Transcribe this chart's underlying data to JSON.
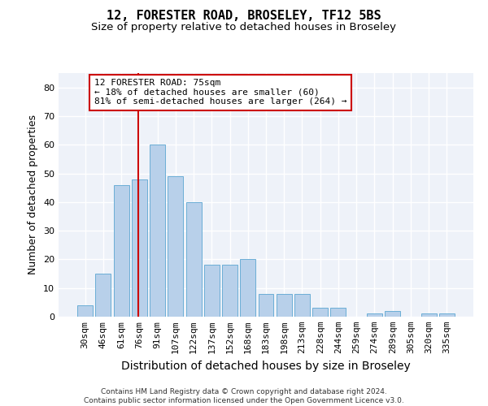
{
  "title1": "12, FORESTER ROAD, BROSELEY, TF12 5BS",
  "title2": "Size of property relative to detached houses in Broseley",
  "xlabel": "Distribution of detached houses by size in Broseley",
  "ylabel": "Number of detached properties",
  "footnote": "Contains HM Land Registry data © Crown copyright and database right 2024.\nContains public sector information licensed under the Open Government Licence v3.0.",
  "categories": [
    "30sqm",
    "46sqm",
    "61sqm",
    "76sqm",
    "91sqm",
    "107sqm",
    "122sqm",
    "137sqm",
    "152sqm",
    "168sqm",
    "183sqm",
    "198sqm",
    "213sqm",
    "228sqm",
    "244sqm",
    "259sqm",
    "274sqm",
    "289sqm",
    "305sqm",
    "320sqm",
    "335sqm"
  ],
  "values": [
    4,
    15,
    46,
    48,
    60,
    49,
    40,
    18,
    18,
    20,
    8,
    8,
    8,
    3,
    3,
    0,
    1,
    2,
    0,
    1,
    1
  ],
  "bar_color": "#b8d0ea",
  "bar_edge_color": "#6baed6",
  "vline_color": "#cc0000",
  "annotation_text": "12 FORESTER ROAD: 75sqm\n← 18% of detached houses are smaller (60)\n81% of semi-detached houses are larger (264) →",
  "annotation_box_color": "#cc0000",
  "ylim": [
    0,
    85
  ],
  "yticks": [
    0,
    10,
    20,
    30,
    40,
    50,
    60,
    70,
    80
  ],
  "background_color": "#eef2f9",
  "grid_color": "#ffffff",
  "title1_fontsize": 11,
  "title2_fontsize": 9.5,
  "xlabel_fontsize": 10,
  "ylabel_fontsize": 9,
  "tick_fontsize": 8,
  "annotation_fontsize": 8,
  "footnote_fontsize": 6.5
}
